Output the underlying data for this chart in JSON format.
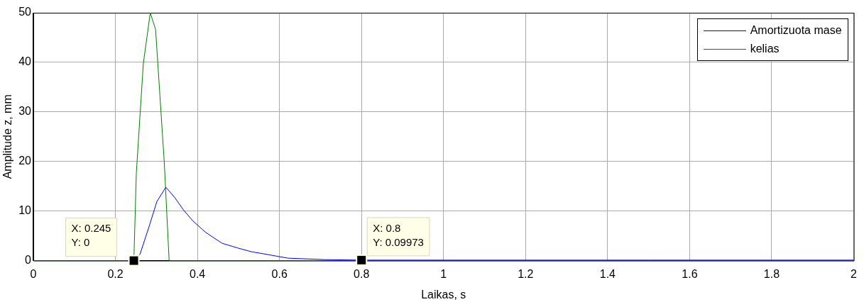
{
  "chart_data": {
    "type": "line",
    "xlabel": "Laikas, s",
    "ylabel": "Amplitude z, mm",
    "series": [
      {
        "name": "Amortizuota mase",
        "color": "#0000ff",
        "x": [
          0.245,
          0.26,
          0.283,
          0.301,
          0.323,
          0.345,
          0.366,
          0.389,
          0.42,
          0.46,
          0.5,
          0.531,
          0.566,
          0.62,
          0.71,
          0.8,
          1,
          1.5,
          2
        ],
        "values": [
          0,
          1.3,
          7.1,
          11.9,
          14.8,
          12.7,
          10.2,
          8.0,
          5.7,
          3.5,
          2.5,
          1.8,
          1.3,
          0.5,
          0.2,
          0.09973,
          0.1,
          0.1,
          0.1
        ]
      },
      {
        "name": "kelias",
        "color": "#008000",
        "x": [
          0,
          0.245,
          0.251,
          0.268,
          0.285,
          0.298,
          0.319,
          0.331,
          0.4,
          1,
          2
        ],
        "values": [
          0,
          0,
          17.6,
          39.7,
          50,
          46.6,
          20,
          0,
          0,
          0,
          0
        ]
      }
    ],
    "xlim": [
      0,
      2
    ],
    "xticks": [
      0,
      0.2,
      0.4,
      0.6,
      0.8,
      1,
      1.2,
      1.4,
      1.6,
      1.8,
      2
    ],
    "ylim": [
      0,
      50
    ],
    "yticks": [
      0,
      10,
      20,
      30,
      40,
      50
    ],
    "grid": true,
    "legend": "top right",
    "marker": "none",
    "annotations": [
      {
        "text": "X: 0.245\nY: 0",
        "x": 0.245,
        "y": 0
      },
      {
        "text": "X: 0.8\nY: 0.09973",
        "x": 0.8,
        "y": 0.09973
      }
    ]
  }
}
